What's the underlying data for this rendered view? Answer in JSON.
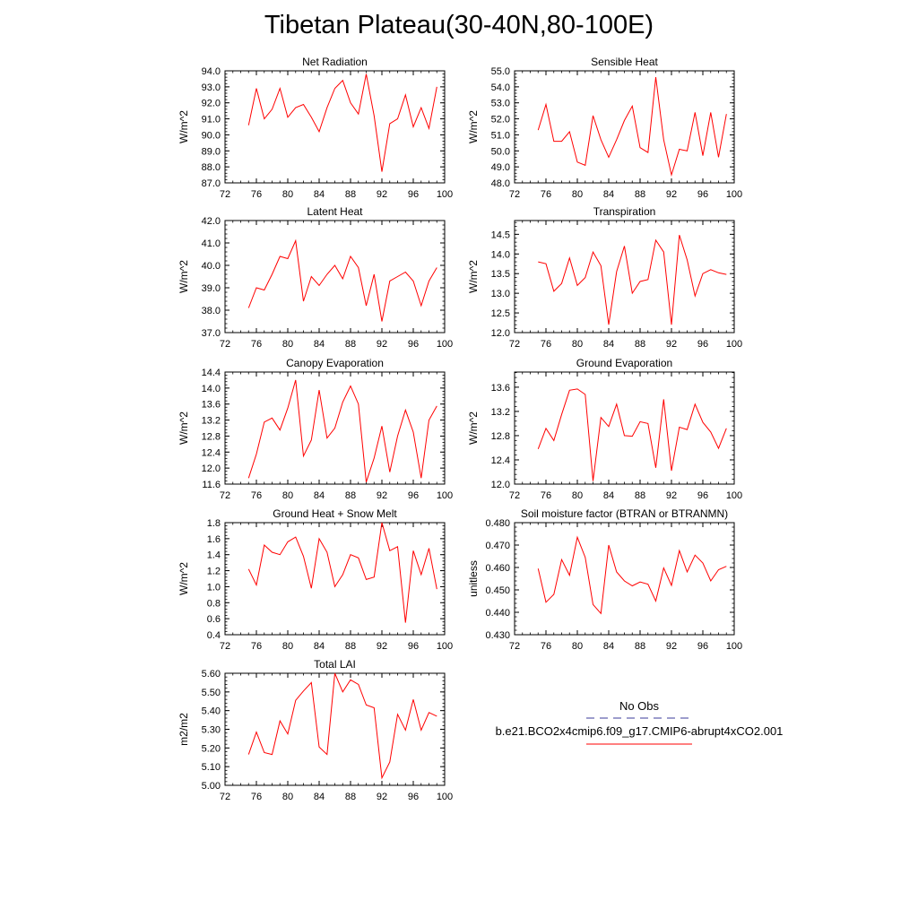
{
  "title": "Tibetan Plateau(30-40N,80-100E)",
  "x_ticks": [
    "72",
    "76",
    "80",
    "84",
    "88",
    "92",
    "96",
    "100"
  ],
  "legend": {
    "entries": [
      {
        "label": "No Obs",
        "color": "#3b3b9a",
        "style": "dashed"
      },
      {
        "label": "b.e21.BCO2x4cmip6.f09_g17.CMIP6-abrupt4xCO2.001",
        "color": "#ff0000",
        "style": "solid"
      }
    ]
  },
  "chart_data": [
    {
      "type": "line",
      "title": "Net Radiation",
      "ylabel": "W/m^2",
      "xlim": [
        72,
        100
      ],
      "ylim": [
        87.0,
        94.0
      ],
      "yticks": [
        "87.0",
        "88.0",
        "89.0",
        "90.0",
        "91.0",
        "92.0",
        "93.0",
        "94.0"
      ],
      "series": [
        {
          "color": "#ff0000",
          "x": [
            75,
            76,
            77,
            78,
            79,
            80,
            81,
            82,
            83,
            84,
            85,
            86,
            87,
            88,
            89,
            90,
            91,
            92,
            93,
            94,
            95,
            96,
            97,
            98,
            99
          ],
          "values": [
            90.6,
            92.9,
            91.0,
            91.6,
            92.9,
            91.1,
            91.7,
            91.9,
            91.1,
            90.2,
            91.7,
            92.9,
            93.4,
            92.0,
            91.3,
            93.8,
            91.2,
            87.7,
            90.7,
            91.0,
            92.5,
            90.5,
            91.7,
            90.4,
            93.0
          ]
        }
      ]
    },
    {
      "type": "line",
      "title": "Sensible Heat",
      "ylabel": "W/m^2",
      "xlim": [
        72,
        100
      ],
      "ylim": [
        48.0,
        55.0
      ],
      "yticks": [
        "48.0",
        "49.0",
        "50.0",
        "51.0",
        "52.0",
        "53.0",
        "54.0",
        "55.0"
      ],
      "series": [
        {
          "color": "#ff0000",
          "x": [
            75,
            76,
            77,
            78,
            79,
            80,
            81,
            82,
            83,
            84,
            85,
            86,
            87,
            88,
            89,
            90,
            91,
            92,
            93,
            94,
            95,
            96,
            97,
            98,
            99
          ],
          "values": [
            51.3,
            52.9,
            50.6,
            50.6,
            51.2,
            49.3,
            49.1,
            52.2,
            50.7,
            49.6,
            50.7,
            51.9,
            52.8,
            50.2,
            49.9,
            54.6,
            50.7,
            48.5,
            50.1,
            50.0,
            52.4,
            49.7,
            52.4,
            49.6,
            52.3
          ]
        }
      ]
    },
    {
      "type": "line",
      "title": "Latent Heat",
      "ylabel": "W/m^2",
      "xlim": [
        72,
        100
      ],
      "ylim": [
        37.0,
        42.0
      ],
      "yticks": [
        "37.0",
        "38.0",
        "39.0",
        "40.0",
        "41.0",
        "42.0"
      ],
      "series": [
        {
          "color": "#ff0000",
          "x": [
            75,
            76,
            77,
            78,
            79,
            80,
            81,
            82,
            83,
            84,
            85,
            86,
            87,
            88,
            89,
            90,
            91,
            92,
            93,
            94,
            95,
            96,
            97,
            98,
            99
          ],
          "values": [
            38.1,
            39.0,
            38.9,
            39.6,
            40.4,
            40.3,
            41.1,
            38.4,
            39.5,
            39.1,
            39.6,
            40.0,
            39.4,
            40.4,
            39.9,
            38.2,
            39.6,
            37.5,
            39.3,
            39.5,
            39.7,
            39.3,
            38.2,
            39.3,
            39.9
          ]
        }
      ]
    },
    {
      "type": "line",
      "title": "Transpiration",
      "ylabel": "W/m^2",
      "xlim": [
        72,
        100
      ],
      "ylim": [
        12.0,
        14.85
      ],
      "yticks": [
        "12.0",
        "12.5",
        "13.0",
        "13.5",
        "14.0",
        "14.5"
      ],
      "series": [
        {
          "color": "#ff0000",
          "x": [
            75,
            76,
            77,
            78,
            79,
            80,
            81,
            82,
            83,
            84,
            85,
            86,
            87,
            88,
            89,
            90,
            91,
            92,
            93,
            94,
            95,
            96,
            97,
            98,
            99
          ],
          "values": [
            13.8,
            13.75,
            13.05,
            13.25,
            13.9,
            13.2,
            13.4,
            14.05,
            13.7,
            12.2,
            13.55,
            14.2,
            13.0,
            13.3,
            13.35,
            14.35,
            14.05,
            12.2,
            14.48,
            13.85,
            12.93,
            13.5,
            13.6,
            13.52,
            13.48
          ]
        }
      ]
    },
    {
      "type": "line",
      "title": "Canopy Evaporation",
      "ylabel": "W/m^2",
      "xlim": [
        72,
        100
      ],
      "ylim": [
        11.6,
        14.4
      ],
      "yticks": [
        "11.6",
        "12.0",
        "12.4",
        "12.8",
        "13.2",
        "13.6",
        "14.0",
        "14.4"
      ],
      "series": [
        {
          "color": "#ff0000",
          "x": [
            75,
            76,
            77,
            78,
            79,
            80,
            81,
            82,
            83,
            84,
            85,
            86,
            87,
            88,
            89,
            90,
            91,
            92,
            93,
            94,
            95,
            96,
            97,
            98,
            99
          ],
          "values": [
            11.75,
            12.35,
            13.15,
            13.25,
            12.95,
            13.5,
            14.2,
            12.3,
            12.7,
            13.95,
            12.75,
            13.0,
            13.65,
            14.05,
            13.6,
            11.65,
            12.25,
            13.05,
            11.9,
            12.8,
            13.45,
            12.9,
            11.75,
            13.2,
            13.55
          ]
        }
      ]
    },
    {
      "type": "line",
      "title": "Ground Evaporation",
      "ylabel": "W/m^2",
      "xlim": [
        72,
        100
      ],
      "ylim": [
        12.0,
        13.85
      ],
      "yticks": [
        "12.0",
        "12.4",
        "12.8",
        "13.2",
        "13.6"
      ],
      "series": [
        {
          "color": "#ff0000",
          "x": [
            75,
            76,
            77,
            78,
            79,
            80,
            81,
            82,
            83,
            84,
            85,
            86,
            87,
            88,
            89,
            90,
            91,
            92,
            93,
            94,
            95,
            96,
            97,
            98,
            99
          ],
          "values": [
            12.58,
            12.92,
            12.72,
            13.15,
            13.55,
            13.57,
            13.48,
            12.05,
            13.1,
            12.95,
            13.32,
            12.8,
            12.79,
            13.03,
            13.0,
            12.27,
            13.4,
            12.22,
            12.94,
            12.9,
            13.32,
            13.02,
            12.86,
            12.59,
            12.92
          ]
        }
      ]
    },
    {
      "type": "line",
      "title": "Ground Heat + Snow Melt",
      "ylabel": "W/m^2",
      "xlim": [
        72,
        100
      ],
      "ylim": [
        0.4,
        1.8
      ],
      "yticks": [
        "0.4",
        "0.6",
        "0.8",
        "1.0",
        "1.2",
        "1.4",
        "1.6",
        "1.8"
      ],
      "series": [
        {
          "color": "#ff0000",
          "x": [
            75,
            76,
            77,
            78,
            79,
            80,
            81,
            82,
            83,
            84,
            85,
            86,
            87,
            88,
            89,
            90,
            91,
            92,
            93,
            94,
            95,
            96,
            97,
            98,
            99
          ],
          "values": [
            1.22,
            1.02,
            1.52,
            1.43,
            1.4,
            1.56,
            1.62,
            1.38,
            0.98,
            1.6,
            1.43,
            1.0,
            1.15,
            1.4,
            1.36,
            1.09,
            1.12,
            1.8,
            1.45,
            1.5,
            0.55,
            1.45,
            1.15,
            1.48,
            0.97
          ]
        }
      ]
    },
    {
      "type": "line",
      "title": "Soil moisture factor (BTRAN or BTRANMN)",
      "ylabel": "unitless",
      "xlim": [
        72,
        100
      ],
      "ylim": [
        0.43,
        0.48
      ],
      "yticks": [
        "0.430",
        "0.440",
        "0.450",
        "0.460",
        "0.470",
        "0.480"
      ],
      "series": [
        {
          "color": "#ff0000",
          "x": [
            75,
            76,
            77,
            78,
            79,
            80,
            81,
            82,
            83,
            84,
            85,
            86,
            87,
            88,
            89,
            90,
            91,
            92,
            93,
            94,
            95,
            96,
            97,
            98,
            99
          ],
          "values": [
            0.4595,
            0.4445,
            0.448,
            0.4635,
            0.4565,
            0.4735,
            0.4645,
            0.4435,
            0.4395,
            0.47,
            0.458,
            0.454,
            0.4518,
            0.4535,
            0.4525,
            0.445,
            0.4598,
            0.452,
            0.4675,
            0.458,
            0.4655,
            0.462,
            0.454,
            0.459,
            0.4605
          ]
        }
      ]
    },
    {
      "type": "line",
      "title": "Total LAI",
      "ylabel": "m2/m2",
      "xlim": [
        72,
        100
      ],
      "ylim": [
        5.0,
        5.6
      ],
      "yticks": [
        "5.00",
        "5.10",
        "5.20",
        "5.30",
        "5.40",
        "5.50",
        "5.60"
      ],
      "series": [
        {
          "color": "#ff0000",
          "x": [
            75,
            76,
            77,
            78,
            79,
            80,
            81,
            82,
            83,
            84,
            85,
            86,
            87,
            88,
            89,
            90,
            91,
            92,
            93,
            94,
            95,
            96,
            97,
            98,
            99
          ],
          "values": [
            5.165,
            5.285,
            5.175,
            5.165,
            5.345,
            5.275,
            5.455,
            5.505,
            5.55,
            5.205,
            5.165,
            5.6,
            5.5,
            5.565,
            5.54,
            5.43,
            5.415,
            5.04,
            5.125,
            5.38,
            5.295,
            5.46,
            5.295,
            5.39,
            5.37
          ]
        }
      ]
    }
  ]
}
